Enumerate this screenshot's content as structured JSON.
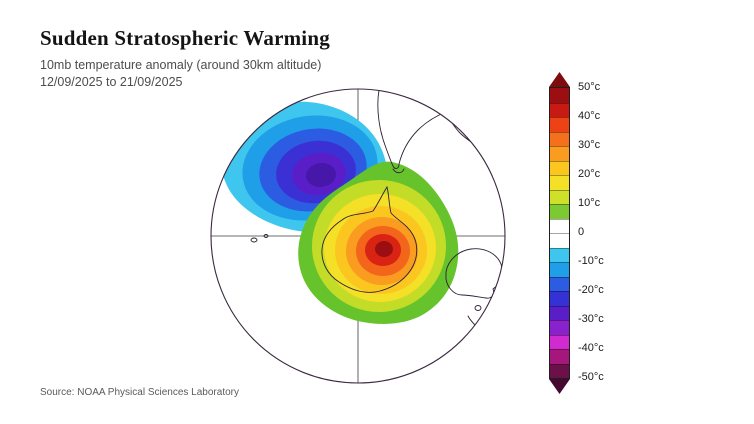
{
  "header": {
    "title": "Sudden Stratospheric Warming",
    "subtitle": "10mb temperature anomaly (around 30km altitude)",
    "date_range": "12/09/2025 to 21/09/2025"
  },
  "footer": {
    "source": "Source: NOAA Physical Sciences Laboratory"
  },
  "colorbar": {
    "tick_labels": [
      "50°c",
      "40°c",
      "30°c",
      "20°c",
      "10°c",
      "0",
      "-10°c",
      "-20°c",
      "-30°c",
      "-40°c",
      "-50°c"
    ],
    "band_colors": [
      "#9b0e11",
      "#c91913",
      "#ec4216",
      "#f4701c",
      "#f99c1f",
      "#fcc621",
      "#f4e026",
      "#cfe02a",
      "#7cc931",
      "#ffffff",
      "#ffffff",
      "#3ec6ee",
      "#1f9fe8",
      "#2b5ce2",
      "#3432d4",
      "#5a1ec8",
      "#8921cd",
      "#cf2bd0",
      "#a5177c",
      "#6b1048"
    ],
    "arrow_top_color": "#7e0b0d",
    "arrow_bottom_color": "#45082f"
  },
  "chart_data": {
    "type": "heatmap",
    "title": "Sudden Stratospheric Warming",
    "subtitle": "10mb temperature anomaly (around 30km altitude)",
    "period": "12/09/2025 to 21/09/2025",
    "projection": "south polar stereographic (Southern Hemisphere view with Antarctica at center)",
    "units": "°c",
    "scale_range": [
      -50,
      50
    ],
    "contour_interval_c": 5,
    "legend_position": "right",
    "gridlines": "outer circle boundary plus centered horizontal and vertical meridian lines",
    "features": [
      {
        "name": "cold anomaly (displaced polar vortex)",
        "position": "upper-left quadrant of the polar view",
        "peak_value_c": -32,
        "contour_levels_c": [
          -10,
          -15,
          -20,
          -25,
          -30,
          -32
        ]
      },
      {
        "name": "warm anomaly (sudden stratospheric warming)",
        "position": "centered over Antarctica, extending toward lower-right",
        "peak_value_c": 47,
        "contour_levels_c": [
          10,
          15,
          20,
          25,
          30,
          35,
          40,
          45
        ]
      }
    ],
    "level_colors": {
      "10": "#66c32c",
      "15": "#c3dc27",
      "20": "#f4e026",
      "25": "#fcc621",
      "30": "#f99c1f",
      "35": "#f2651a",
      "40": "#d92413",
      "45": "#9b0e11",
      "-10": "#3ec6ee",
      "-15": "#1f9fe8",
      "-20": "#2b5ce2",
      "-25": "#3a30d4",
      "-30": "#5a1ec8",
      "-32": "#4617a8"
    }
  }
}
